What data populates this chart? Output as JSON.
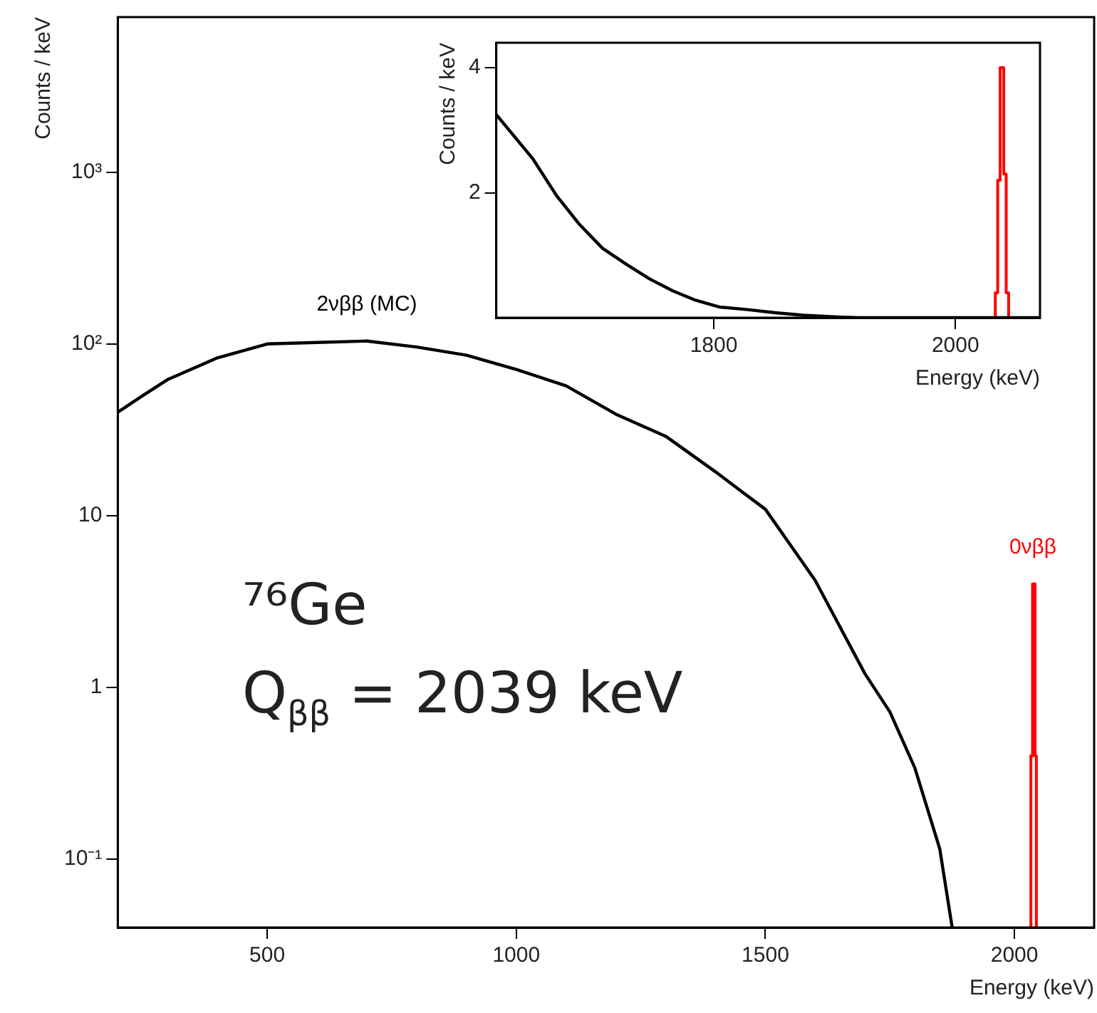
{
  "chart_data": [
    {
      "type": "line",
      "xlabel": "Energy (keV)",
      "ylabel": "Counts / keV",
      "log": "y",
      "xlim": [
        200,
        2160
      ],
      "xticks": [
        500,
        1000,
        1500,
        2000
      ],
      "ylim": [
        0.04,
        8000
      ],
      "yticks": [
        {
          "value": 0.1,
          "label": "10⁻¹"
        },
        1,
        10,
        {
          "value": 100,
          "label": "10²"
        },
        {
          "value": 1000,
          "label": "10³"
        }
      ],
      "grid": false,
      "legend": false,
      "marker": "none",
      "line_style": "solid",
      "series": [
        {
          "name": "2νββ (MC)",
          "color": "#000000",
          "x": [
            200,
            250,
            300,
            400,
            500,
            600,
            700,
            800,
            900,
            1000,
            1100,
            1200,
            1300,
            1400,
            1450,
            1500,
            1600,
            1700,
            1750,
            1800,
            1850,
            1875
          ],
          "values": [
            40,
            50,
            62,
            83,
            100,
            102,
            104,
            96,
            86,
            71,
            57,
            39,
            29,
            18,
            14,
            10.9,
            4.2,
            1.2,
            0.72,
            0.34,
            0.115,
            0.04
          ]
        },
        {
          "name": "0νββ",
          "type": "histogram",
          "color": "#ff0000",
          "bins": [
            2033,
            2035,
            2037,
            2040,
            2042,
            2044
          ],
          "values": [
            0.4,
            2.2,
            4.0,
            2.3,
            0.4
          ]
        }
      ],
      "annotations": [
        "⁷⁶Ge",
        "Q$_{ββ}$ = 2039 keV"
      ]
    },
    {
      "type": "line",
      "xlabel": "Energy (keV)",
      "ylabel": "Counts / keV",
      "xlim": [
        1620,
        2070
      ],
      "xticks": [
        1800,
        2000
      ],
      "ylim": [
        0,
        4.4
      ],
      "yticks": [
        2,
        4
      ],
      "grid": false,
      "legend": false,
      "marker": "none",
      "line_style": "solid",
      "series": [
        {
          "color": "#000000",
          "x": [
            1620,
            1650,
            1670,
            1689,
            1708,
            1728,
            1747,
            1766,
            1785,
            1805,
            1828,
            1851,
            1874,
            1905,
            1920,
            2070
          ],
          "values": [
            3.25,
            2.55,
            1.95,
            1.49,
            1.11,
            0.85,
            0.62,
            0.43,
            0.28,
            0.17,
            0.13,
            0.08,
            0.04,
            0.01,
            0,
            0
          ]
        },
        {
          "type": "histogram",
          "color": "#ff0000",
          "bins": [
            2033,
            2035,
            2037,
            2040,
            2042,
            2044
          ],
          "values": [
            0.4,
            2.2,
            4.0,
            2.3,
            0.4
          ]
        }
      ]
    }
  ]
}
